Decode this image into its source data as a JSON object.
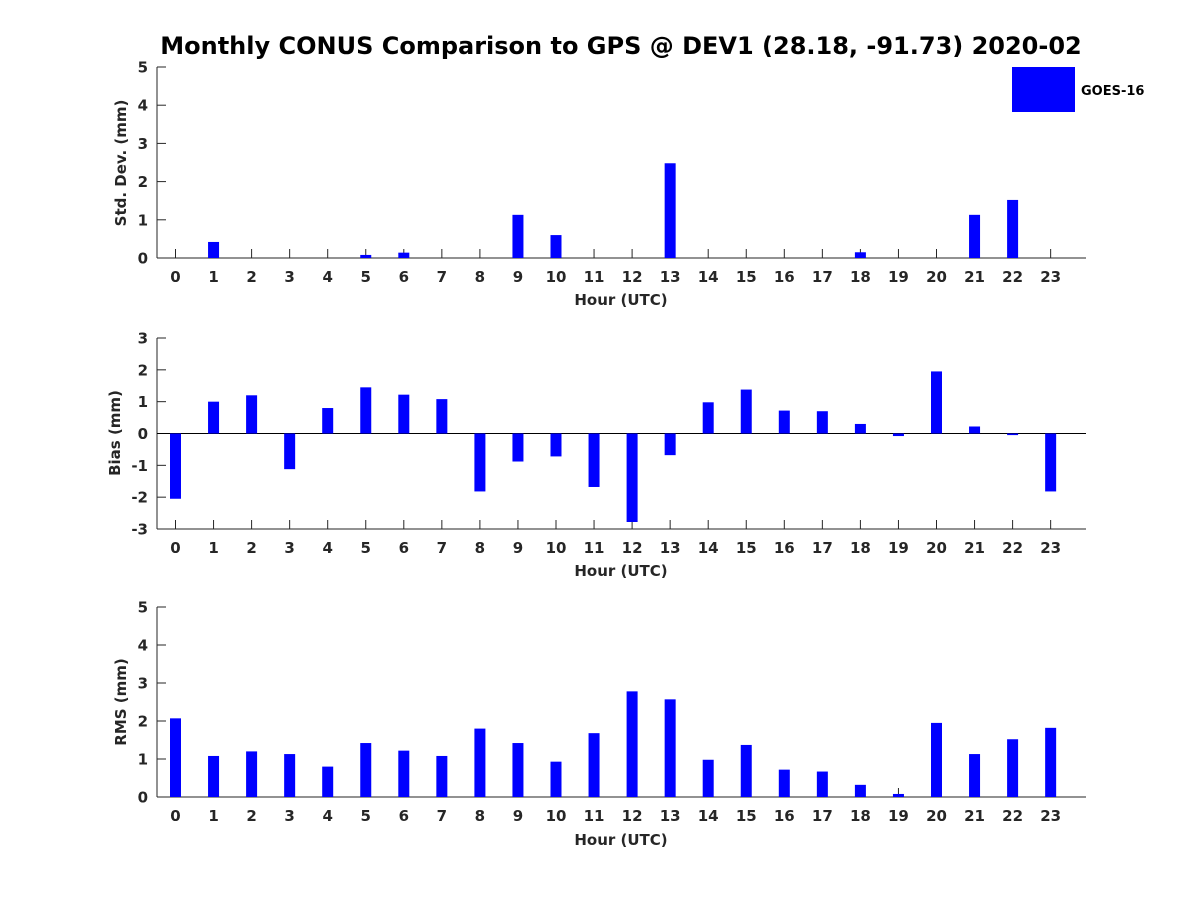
{
  "title": "Monthly CONUS Comparison to GPS @ DEV1 (28.18, -91.73) 2020-02",
  "legend": {
    "label": "GOES-16",
    "color": "#0000ff"
  },
  "chart_data": [
    {
      "type": "bar",
      "xlabel": "Hour (UTC)",
      "ylabel": "Std. Dev. (mm)",
      "ylim": [
        0,
        5
      ],
      "yticks": [
        "0",
        "1",
        "2",
        "3",
        "4",
        "5"
      ],
      "categories": [
        "0",
        "1",
        "2",
        "3",
        "4",
        "5",
        "6",
        "7",
        "8",
        "9",
        "10",
        "11",
        "12",
        "13",
        "14",
        "15",
        "16",
        "17",
        "18",
        "19",
        "20",
        "21",
        "22",
        "23"
      ],
      "series": [
        {
          "name": "GOES-16",
          "values": [
            0,
            0.42,
            0,
            0,
            0,
            0.08,
            0.14,
            0,
            0,
            1.13,
            0.6,
            0,
            0,
            2.48,
            0,
            0,
            0,
            0,
            0.15,
            0,
            0,
            1.13,
            1.52,
            0
          ]
        }
      ]
    },
    {
      "type": "bar",
      "xlabel": "Hour (UTC)",
      "ylabel": "Bias (mm)",
      "ylim": [
        -3,
        3
      ],
      "yticks": [
        "-3",
        "-2",
        "-1",
        "0",
        "1",
        "2",
        "3"
      ],
      "categories": [
        "0",
        "1",
        "2",
        "3",
        "4",
        "5",
        "6",
        "7",
        "8",
        "9",
        "10",
        "11",
        "12",
        "13",
        "14",
        "15",
        "16",
        "17",
        "18",
        "19",
        "20",
        "21",
        "22",
        "23"
      ],
      "series": [
        {
          "name": "GOES-16",
          "values": [
            -2.05,
            1.0,
            1.2,
            -1.12,
            0.8,
            1.45,
            1.22,
            1.08,
            -1.82,
            -0.88,
            -0.72,
            -1.68,
            -2.78,
            -0.68,
            0.98,
            1.38,
            0.72,
            0.7,
            0.3,
            -0.08,
            1.95,
            0.22,
            -0.05,
            -1.82
          ]
        }
      ]
    },
    {
      "type": "bar",
      "xlabel": "Hour (UTC)",
      "ylabel": "RMS (mm)",
      "ylim": [
        0,
        5
      ],
      "yticks": [
        "0",
        "1",
        "2",
        "3",
        "4",
        "5"
      ],
      "categories": [
        "0",
        "1",
        "2",
        "3",
        "4",
        "5",
        "6",
        "7",
        "8",
        "9",
        "10",
        "11",
        "12",
        "13",
        "14",
        "15",
        "16",
        "17",
        "18",
        "19",
        "20",
        "21",
        "22",
        "23"
      ],
      "series": [
        {
          "name": "GOES-16",
          "values": [
            2.07,
            1.08,
            1.2,
            1.13,
            0.8,
            1.42,
            1.22,
            1.08,
            1.8,
            1.42,
            0.93,
            1.68,
            2.78,
            2.57,
            0.98,
            1.37,
            0.72,
            0.67,
            0.32,
            0.08,
            1.95,
            1.13,
            1.52,
            1.82
          ]
        }
      ]
    }
  ]
}
